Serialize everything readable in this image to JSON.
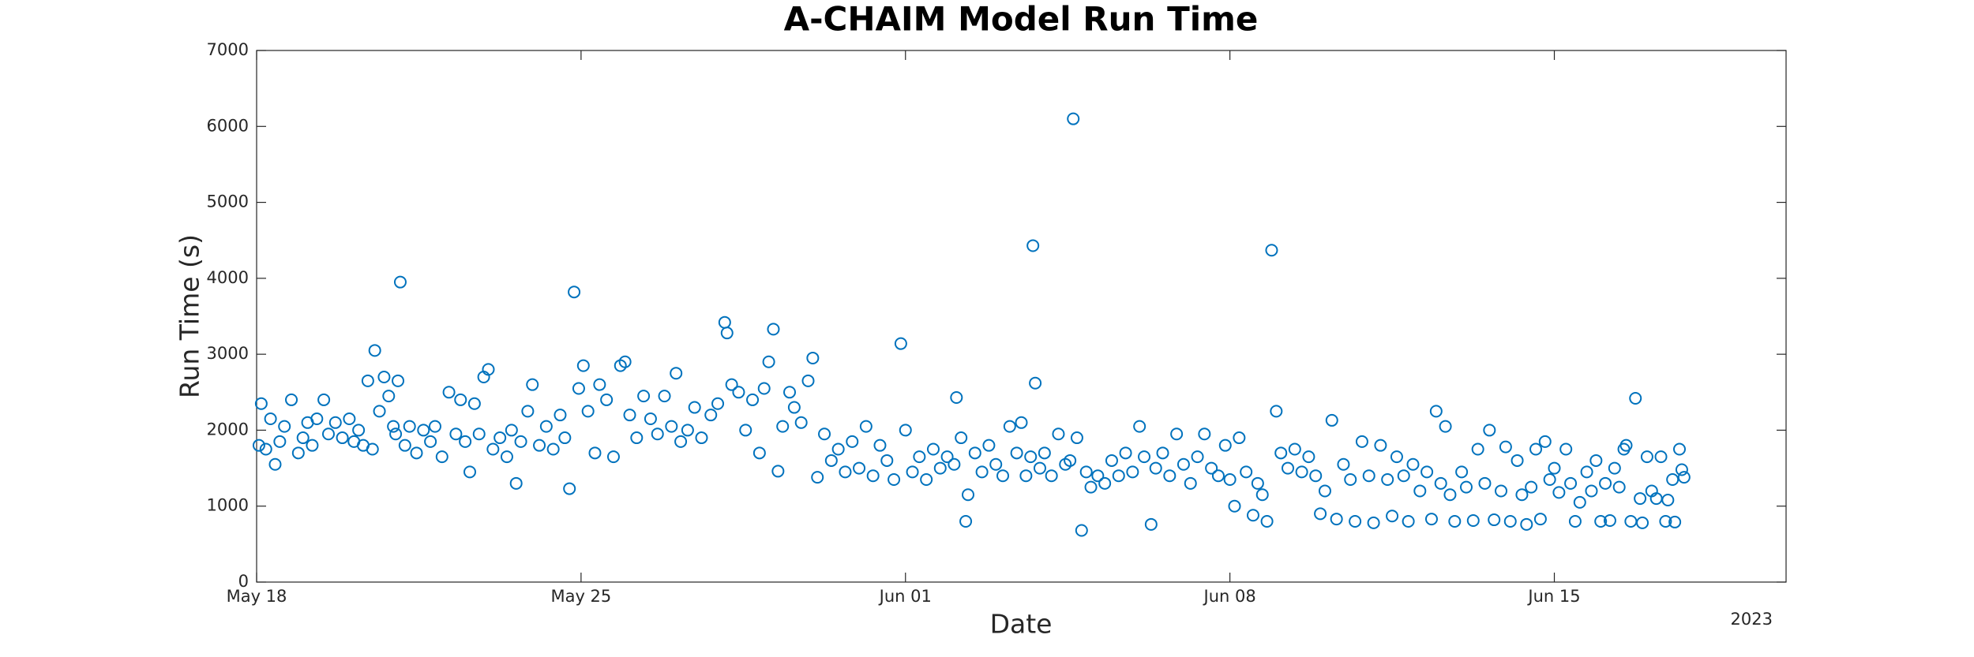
{
  "chart_data": {
    "type": "scatter",
    "title": "A-CHAIM Model Run Time",
    "x_label": "Date",
    "y_label": "Run Time (s)",
    "x_year_label": "2023",
    "color": "#0072bd",
    "grid": false,
    "xlim": [
      0,
      33
    ],
    "xticks": [
      {
        "value": 0,
        "label": "May 18"
      },
      {
        "value": 7,
        "label": "May 25"
      },
      {
        "value": 14,
        "label": "Jun 01"
      },
      {
        "value": 21,
        "label": "Jun 08"
      },
      {
        "value": 28,
        "label": "Jun 15"
      }
    ],
    "ylim": [
      0,
      7000
    ],
    "yticks": [
      0,
      1000,
      2000,
      3000,
      4000,
      5000,
      6000,
      7000
    ],
    "x": [
      0.05,
      0.1,
      0.2,
      0.3,
      0.4,
      0.5,
      0.6,
      0.75,
      0.9,
      1.0,
      1.1,
      1.2,
      1.3,
      1.45,
      1.55,
      1.7,
      1.85,
      2.0,
      2.1,
      2.2,
      2.3,
      2.4,
      2.5,
      2.55,
      2.65,
      2.75,
      2.85,
      2.95,
      3.0,
      3.05,
      3.1,
      3.2,
      3.3,
      3.45,
      3.6,
      3.75,
      3.85,
      4.0,
      4.15,
      4.3,
      4.4,
      4.5,
      4.6,
      4.7,
      4.8,
      4.9,
      5.0,
      5.1,
      5.25,
      5.4,
      5.5,
      5.6,
      5.7,
      5.85,
      5.95,
      6.1,
      6.25,
      6.4,
      6.55,
      6.65,
      6.75,
      6.85,
      6.95,
      7.05,
      7.15,
      7.3,
      7.4,
      7.55,
      7.7,
      7.85,
      7.95,
      8.05,
      8.2,
      8.35,
      8.5,
      8.65,
      8.8,
      8.95,
      9.05,
      9.15,
      9.3,
      9.45,
      9.6,
      9.8,
      9.95,
      10.1,
      10.15,
      10.25,
      10.4,
      10.55,
      10.7,
      10.85,
      10.95,
      11.05,
      11.15,
      11.25,
      11.35,
      11.5,
      11.6,
      11.75,
      11.9,
      12.0,
      12.1,
      12.25,
      12.4,
      12.55,
      12.7,
      12.85,
      13.0,
      13.15,
      13.3,
      13.45,
      13.6,
      13.75,
      13.9,
      14.0,
      14.15,
      14.3,
      14.45,
      14.6,
      14.75,
      14.9,
      15.05,
      15.1,
      15.2,
      15.3,
      15.35,
      15.5,
      15.65,
      15.8,
      15.95,
      16.1,
      16.25,
      16.4,
      16.5,
      16.6,
      16.7,
      16.75,
      16.8,
      16.9,
      17.0,
      17.15,
      17.3,
      17.45,
      17.55,
      17.62,
      17.7,
      17.8,
      17.9,
      18.0,
      18.15,
      18.3,
      18.45,
      18.6,
      18.75,
      18.9,
      19.05,
      19.15,
      19.3,
      19.4,
      19.55,
      19.7,
      19.85,
      20.0,
      20.15,
      20.3,
      20.45,
      20.6,
      20.75,
      20.9,
      21.0,
      21.1,
      21.2,
      21.35,
      21.5,
      21.6,
      21.7,
      21.8,
      21.9,
      22.0,
      22.1,
      22.25,
      22.4,
      22.55,
      22.7,
      22.85,
      22.95,
      23.05,
      23.2,
      23.3,
      23.45,
      23.6,
      23.7,
      23.85,
      24.0,
      24.1,
      24.25,
      24.4,
      24.5,
      24.6,
      24.75,
      24.85,
      24.95,
      25.1,
      25.25,
      25.35,
      25.45,
      25.55,
      25.65,
      25.75,
      25.85,
      26.0,
      26.1,
      26.25,
      26.35,
      26.5,
      26.6,
      26.7,
      26.85,
      26.95,
      27.05,
      27.2,
      27.3,
      27.4,
      27.5,
      27.6,
      27.7,
      27.8,
      27.9,
      28.0,
      28.1,
      28.25,
      28.35,
      28.45,
      28.55,
      28.7,
      28.8,
      28.9,
      29.0,
      29.1,
      29.2,
      29.3,
      29.4,
      29.5,
      29.55,
      29.65,
      29.75,
      29.85,
      29.9,
      30.0,
      30.1,
      30.2,
      30.3,
      30.4,
      30.45,
      30.55,
      30.6,
      30.7,
      30.75,
      30.8
    ],
    "values": [
      1800,
      2350,
      1750,
      2150,
      1550,
      1850,
      2050,
      2400,
      1700,
      1900,
      2100,
      1800,
      2150,
      2400,
      1950,
      2100,
      1900,
      2150,
      1850,
      2000,
      1800,
      2650,
      1750,
      3050,
      2250,
      2700,
      2450,
      2050,
      1950,
      2650,
      3950,
      1800,
      2050,
      1700,
      2000,
      1850,
      2050,
      1650,
      2500,
      1950,
      2400,
      1850,
      1450,
      2350,
      1950,
      2700,
      2800,
      1750,
      1900,
      1650,
      2000,
      1300,
      1850,
      2250,
      2600,
      1800,
      2050,
      1750,
      2200,
      1900,
      1230,
      3820,
      2550,
      2850,
      2250,
      1700,
      2600,
      2400,
      1650,
      2850,
      2900,
      2200,
      1900,
      2450,
      2150,
      1950,
      2450,
      2050,
      2750,
      1850,
      2000,
      2300,
      1900,
      2200,
      2350,
      3420,
      3280,
      2600,
      2500,
      2000,
      2400,
      1700,
      2550,
      2900,
      3330,
      1460,
      2050,
      2500,
      2300,
      2100,
      2650,
      2950,
      1380,
      1950,
      1600,
      1750,
      1450,
      1850,
      1500,
      2050,
      1400,
      1800,
      1600,
      1350,
      3140,
      2000,
      1450,
      1650,
      1350,
      1750,
      1500,
      1650,
      1550,
      2430,
      1900,
      800,
      1150,
      1700,
      1450,
      1800,
      1550,
      1400,
      2050,
      1700,
      2100,
      1400,
      1650,
      4430,
      2620,
      1500,
      1700,
      1400,
      1950,
      1550,
      1600,
      6100,
      1900,
      680,
      1450,
      1250,
      1400,
      1300,
      1600,
      1400,
      1700,
      1450,
      2050,
      1650,
      760,
      1500,
      1700,
      1400,
      1950,
      1550,
      1300,
      1650,
      1950,
      1500,
      1400,
      1800,
      1350,
      1000,
      1900,
      1450,
      880,
      1300,
      1150,
      800,
      4370,
      2250,
      1700,
      1500,
      1750,
      1450,
      1650,
      1400,
      900,
      1200,
      2130,
      830,
      1550,
      1350,
      800,
      1850,
      1400,
      780,
      1800,
      1350,
      870,
      1650,
      1400,
      800,
      1550,
      1200,
      1450,
      830,
      2250,
      1300,
      2050,
      1150,
      800,
      1450,
      1250,
      810,
      1750,
      1300,
      2000,
      820,
      1200,
      1780,
      800,
      1600,
      1150,
      760,
      1250,
      1750,
      830,
      1850,
      1350,
      1500,
      1180,
      1750,
      1300,
      800,
      1050,
      1450,
      1200,
      1600,
      800,
      1300,
      810,
      1500,
      1250,
      1750,
      1800,
      800,
      2420,
      1100,
      780,
      1650,
      1200,
      1100,
      1650,
      800,
      1080,
      1350,
      790,
      1750,
      1480,
      1380
    ]
  }
}
